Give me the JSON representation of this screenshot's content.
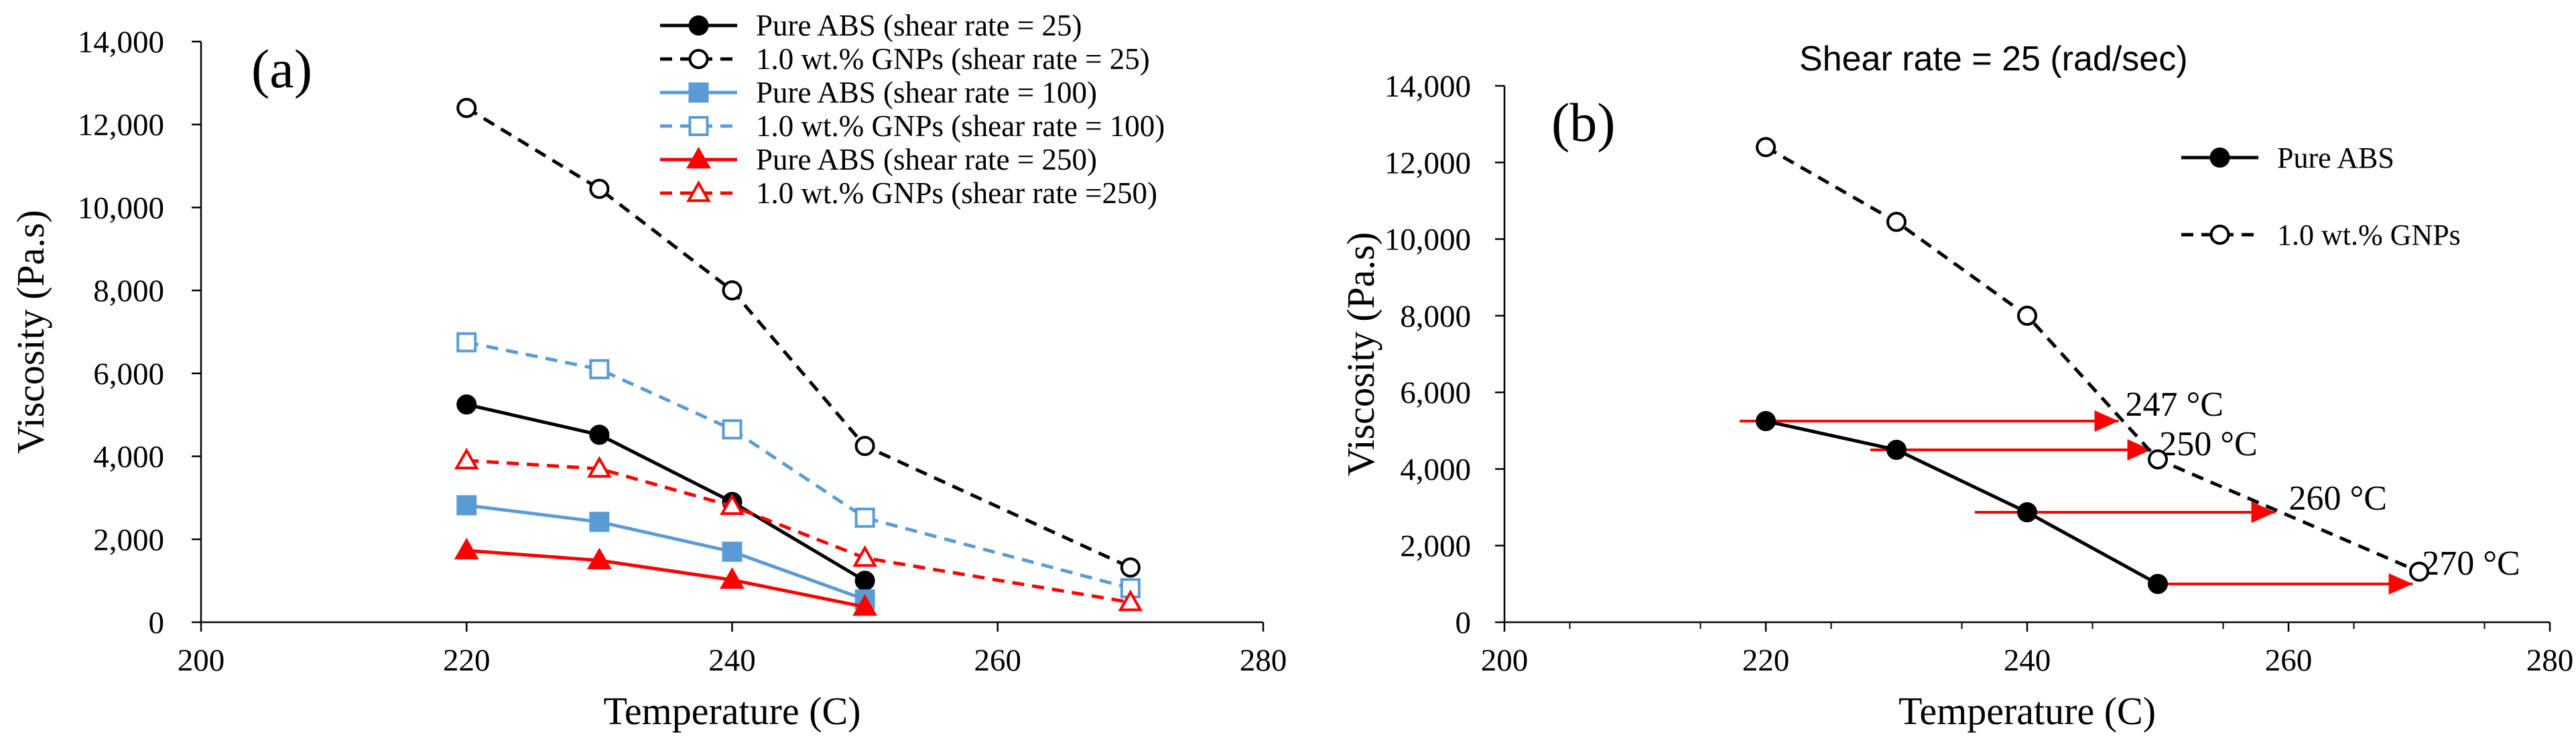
{
  "chart_data": [
    {
      "type": "line",
      "panel_label": "(a)",
      "title": "",
      "xlabel": "Temperature (C)",
      "ylabel": "Viscosity (Pa.s)",
      "xlim": [
        200,
        280
      ],
      "ylim": [
        0,
        14000
      ],
      "x_ticks": [
        "200",
        "220",
        "240",
        "260",
        "280"
      ],
      "y_ticks": [
        "0",
        "2,000",
        "4,000",
        "6,000",
        "8,000",
        "10,000",
        "12,000",
        "14,000"
      ],
      "legend_position": "top-right",
      "series": [
        {
          "name": "Pure ABS (shear rate = 25)",
          "color": "#000000",
          "dashed": false,
          "marker": "circle",
          "filled": true,
          "x": [
            220,
            230,
            240,
            250
          ],
          "y": [
            5250,
            4520,
            2900,
            1000
          ]
        },
        {
          "name": "1.0 wt.% GNPs (shear rate = 25)",
          "color": "#000000",
          "dashed": true,
          "marker": "circle",
          "filled": false,
          "x": [
            220,
            230,
            240,
            250,
            270
          ],
          "y": [
            12400,
            10450,
            8000,
            4250,
            1320
          ]
        },
        {
          "name": "Pure ABS (shear rate = 100)",
          "color": "#5B9BD5",
          "dashed": false,
          "marker": "square",
          "filled": true,
          "x": [
            220,
            230,
            240,
            250
          ],
          "y": [
            2820,
            2420,
            1700,
            550
          ]
        },
        {
          "name": "1.0 wt.% GNPs (shear rate = 100)",
          "color": "#5B9BD5",
          "dashed": true,
          "marker": "square",
          "filled": false,
          "x": [
            220,
            230,
            240,
            250,
            270
          ],
          "y": [
            6750,
            6100,
            4650,
            2520,
            820
          ]
        },
        {
          "name": "Pure ABS (shear rate = 250)",
          "color": "#FF0000",
          "dashed": false,
          "marker": "triangle",
          "filled": true,
          "x": [
            220,
            230,
            240,
            250
          ],
          "y": [
            1730,
            1490,
            1020,
            370
          ]
        },
        {
          "name": "1.0 wt.% GNPs (shear rate =250)",
          "color": "#FF0000",
          "dashed": true,
          "marker": "triangle",
          "filled": false,
          "x": [
            220,
            230,
            240,
            250,
            270
          ],
          "y": [
            3900,
            3700,
            2800,
            1550,
            480
          ]
        }
      ]
    },
    {
      "type": "line",
      "panel_label": "(b)",
      "title": "Shear rate = 25 (rad/sec)",
      "xlabel": "Temperature (C)",
      "ylabel": "Viscosity (Pa.s)",
      "xlim": [
        200,
        280
      ],
      "ylim": [
        0,
        14000
      ],
      "x_ticks": [
        "200",
        "220",
        "240",
        "260",
        "280"
      ],
      "y_ticks": [
        "0",
        "2,000",
        "4,000",
        "6,000",
        "8,000",
        "10,000",
        "12,000",
        "14,000"
      ],
      "legend_position": "top-right",
      "series": [
        {
          "name": "Pure ABS",
          "color": "#000000",
          "dashed": false,
          "marker": "circle",
          "filled": true,
          "x": [
            220,
            230,
            240,
            250
          ],
          "y": [
            5250,
            4500,
            2870,
            1000
          ]
        },
        {
          "name": "1.0 wt.% GNPs",
          "color": "#000000",
          "dashed": true,
          "marker": "circle",
          "filled": false,
          "x": [
            220,
            230,
            240,
            250,
            270
          ],
          "y": [
            12400,
            10450,
            8000,
            4250,
            1320
          ]
        }
      ],
      "arrows": [
        {
          "label": "247 °C",
          "from_x": 218,
          "to_x": 247,
          "y": 5250
        },
        {
          "label": "250 °C",
          "from_x": 228,
          "to_x": 249.5,
          "y": 4500
        },
        {
          "label": "260 °C",
          "from_x": 236,
          "to_x": 259,
          "y": 2870
        },
        {
          "label": "270 °C",
          "from_x": 250,
          "to_x": 269.5,
          "y": 1000
        }
      ]
    }
  ]
}
